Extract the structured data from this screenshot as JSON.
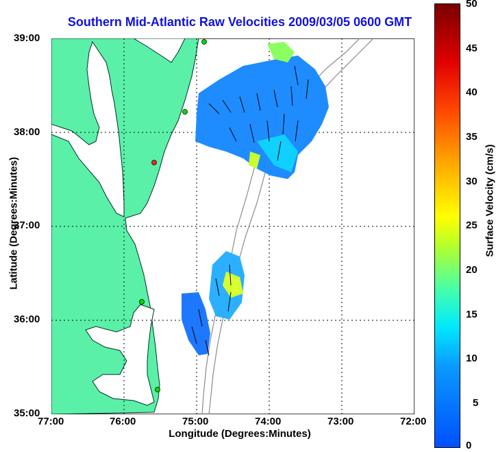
{
  "title": "Southern Mid-Atlantic Raw Velocities 2009/03/05 0600 GMT",
  "x_axis": {
    "label": "Longitude (Degrees:Minutes)",
    "ticks": [
      "77:00",
      "76:00",
      "75:00",
      "74:00",
      "73:00",
      "72:00"
    ]
  },
  "y_axis": {
    "label": "Latitude (Degrees:Minutes)",
    "ticks": [
      "39:00",
      "38:00",
      "37:00",
      "36:00",
      "35:00"
    ]
  },
  "colorbar": {
    "label": "Surface Velocity (cm/s)",
    "ticks": [
      "50",
      "45",
      "40",
      "35",
      "30",
      "25",
      "20",
      "15",
      "10",
      "5",
      "0"
    ],
    "range": [
      0,
      50
    ]
  },
  "map": {
    "lon_range": [
      -77,
      -72
    ],
    "lat_range": [
      35,
      39
    ],
    "land_color": "#5af0a8",
    "grid": "dotted"
  },
  "station_markers": [
    {
      "lon": -75.12,
      "lat": 38.99,
      "color": "#00dd00"
    },
    {
      "lon": -75.15,
      "lat": 38.22,
      "color": "#00dd00"
    },
    {
      "lon": -75.55,
      "lat": 37.65,
      "color": "#ff2020"
    },
    {
      "lon": -75.62,
      "lat": 36.2,
      "color": "#00dd00"
    },
    {
      "lon": -75.58,
      "lat": 35.26,
      "color": "#00dd00"
    }
  ]
}
